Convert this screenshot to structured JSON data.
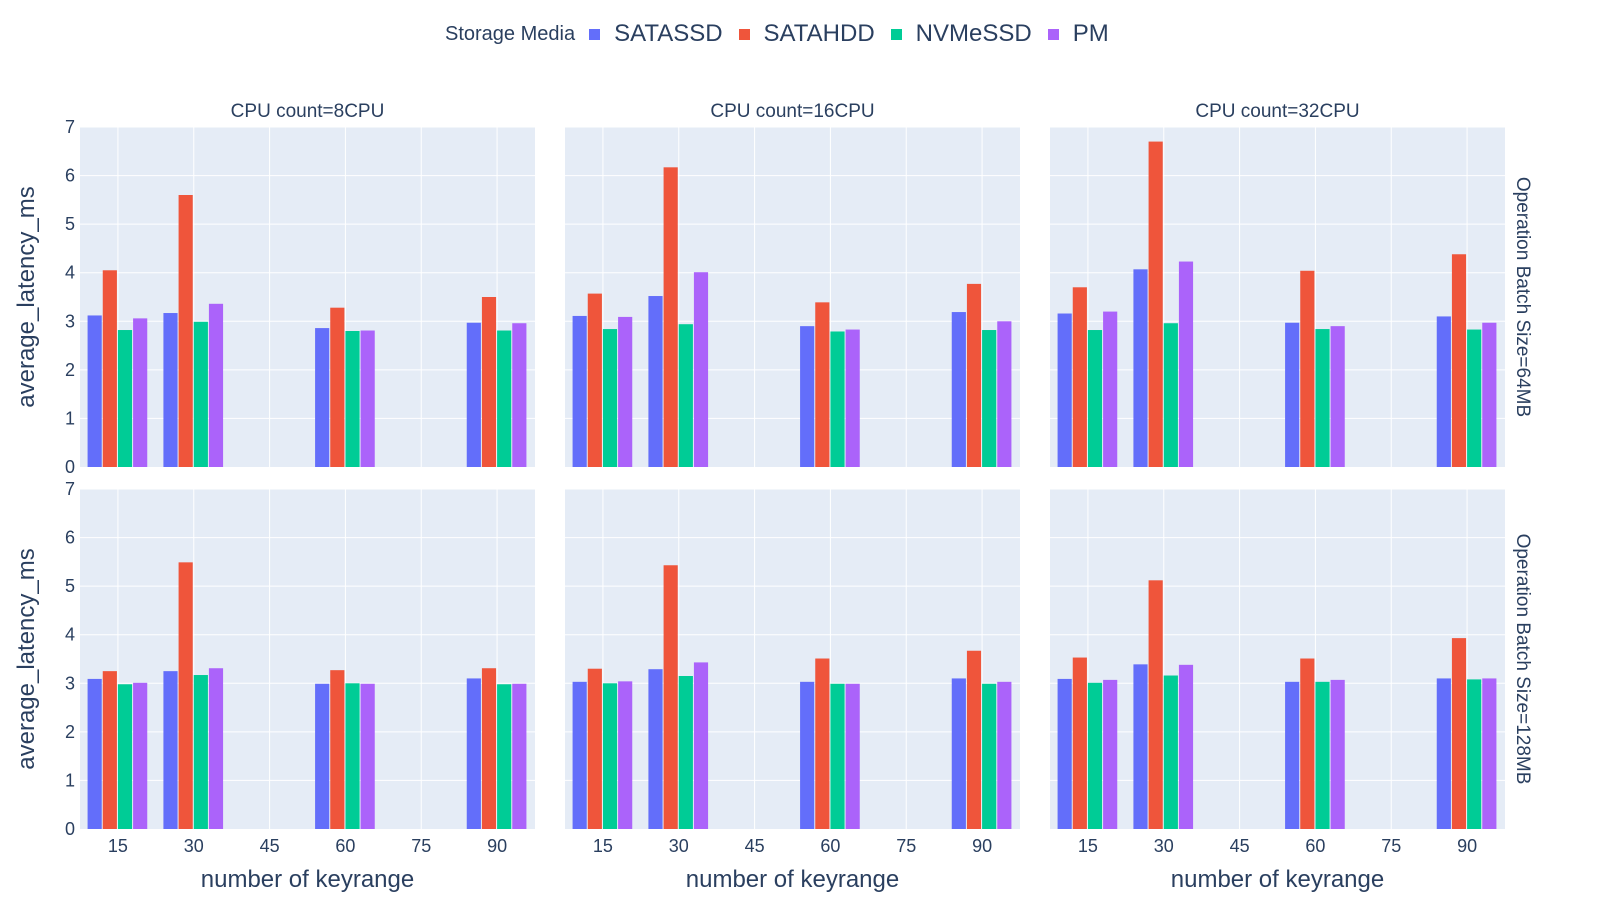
{
  "chart_data": {
    "type": "bar",
    "legend": {
      "title": "Storage Media",
      "placement": "top-center",
      "items": [
        {
          "name": "SATASSD",
          "color": "#636efa"
        },
        {
          "name": "SATAHDD",
          "color": "#ef553b"
        },
        {
          "name": "NVMeSSD",
          "color": "#00cc96"
        },
        {
          "name": "PM",
          "color": "#ab63fa"
        }
      ]
    },
    "column_titles": [
      "CPU count=8CPU",
      "CPU count=16CPU",
      "CPU count=32CPU"
    ],
    "row_titles": [
      "Operation Batch Size=64MB",
      "Operation Batch Size=128MB"
    ],
    "xlabel": "number of keyrange",
    "ylabel": "average_latency_ms",
    "xticks": [
      15,
      30,
      45,
      60,
      75,
      90
    ],
    "yticks": [
      0,
      1,
      2,
      3,
      4,
      5,
      6,
      7
    ],
    "xlim": [
      7.5,
      97.5
    ],
    "ylim": [
      0,
      7
    ],
    "categories": [
      15,
      30,
      60,
      90
    ],
    "plot_bg": "#e5ecf6",
    "grid": true,
    "panels": [
      {
        "column": "CPU count=8CPU",
        "row": "Operation Batch Size=64MB",
        "series": [
          {
            "name": "SATASSD",
            "values": [
              3.12,
              3.17,
              2.86,
              2.97
            ]
          },
          {
            "name": "SATAHDD",
            "values": [
              4.05,
              5.6,
              3.28,
              3.5
            ]
          },
          {
            "name": "NVMeSSD",
            "values": [
              2.82,
              2.99,
              2.8,
              2.81
            ]
          },
          {
            "name": "PM",
            "values": [
              3.06,
              3.36,
              2.81,
              2.96
            ]
          }
        ]
      },
      {
        "column": "CPU count=16CPU",
        "row": "Operation Batch Size=64MB",
        "series": [
          {
            "name": "SATASSD",
            "values": [
              3.11,
              3.52,
              2.9,
              3.19
            ]
          },
          {
            "name": "SATAHDD",
            "values": [
              3.57,
              6.17,
              3.39,
              3.77
            ]
          },
          {
            "name": "NVMeSSD",
            "values": [
              2.84,
              2.94,
              2.79,
              2.82
            ]
          },
          {
            "name": "PM",
            "values": [
              3.09,
              4.01,
              2.83,
              3.0
            ]
          }
        ]
      },
      {
        "column": "CPU count=32CPU",
        "row": "Operation Batch Size=64MB",
        "series": [
          {
            "name": "SATASSD",
            "values": [
              3.16,
              4.07,
              2.97,
              3.1
            ]
          },
          {
            "name": "SATAHDD",
            "values": [
              3.7,
              6.7,
              4.04,
              4.38
            ]
          },
          {
            "name": "NVMeSSD",
            "values": [
              2.82,
              2.96,
              2.84,
              2.83
            ]
          },
          {
            "name": "PM",
            "values": [
              3.2,
              4.23,
              2.9,
              2.97
            ]
          }
        ]
      },
      {
        "column": "CPU count=8CPU",
        "row": "Operation Batch Size=128MB",
        "series": [
          {
            "name": "SATASSD",
            "values": [
              3.09,
              3.25,
              2.99,
              3.1
            ]
          },
          {
            "name": "SATAHDD",
            "values": [
              3.25,
              5.49,
              3.27,
              3.31
            ]
          },
          {
            "name": "NVMeSSD",
            "values": [
              2.98,
              3.17,
              3.0,
              2.98
            ]
          },
          {
            "name": "PM",
            "values": [
              3.01,
              3.31,
              2.99,
              2.99
            ]
          }
        ]
      },
      {
        "column": "CPU count=16CPU",
        "row": "Operation Batch Size=128MB",
        "series": [
          {
            "name": "SATASSD",
            "values": [
              3.03,
              3.29,
              3.03,
              3.1
            ]
          },
          {
            "name": "SATAHDD",
            "values": [
              3.3,
              5.43,
              3.51,
              3.67
            ]
          },
          {
            "name": "NVMeSSD",
            "values": [
              3.0,
              3.15,
              2.99,
              2.99
            ]
          },
          {
            "name": "PM",
            "values": [
              3.04,
              3.43,
              2.99,
              3.03
            ]
          }
        ]
      },
      {
        "column": "CPU count=32CPU",
        "row": "Operation Batch Size=128MB",
        "series": [
          {
            "name": "SATASSD",
            "values": [
              3.09,
              3.39,
              3.03,
              3.1
            ]
          },
          {
            "name": "SATAHDD",
            "values": [
              3.53,
              5.12,
              3.51,
              3.93
            ]
          },
          {
            "name": "NVMeSSD",
            "values": [
              3.01,
              3.16,
              3.03,
              3.08
            ]
          },
          {
            "name": "PM",
            "values": [
              3.07,
              3.38,
              3.07,
              3.1
            ]
          }
        ]
      }
    ]
  }
}
